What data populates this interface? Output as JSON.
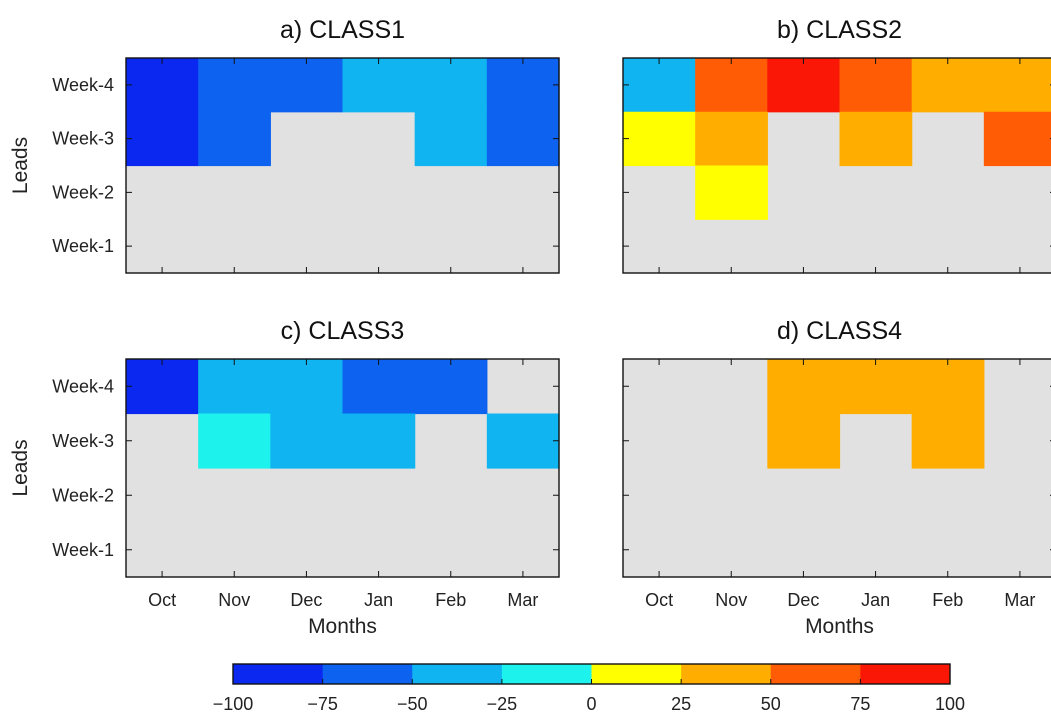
{
  "chart_data": [
    {
      "type": "heatmap",
      "title": "a) CLASS1",
      "x_categories": [
        "Oct",
        "Nov",
        "Dec",
        "Jan",
        "Feb",
        "Mar"
      ],
      "y_categories": [
        "Week-4",
        "Week-3",
        "Week-2",
        "Week-1"
      ],
      "xlabel": "",
      "ylabel": "Leads",
      "values": [
        [
          -87.5,
          -62.5,
          -62.5,
          -37.5,
          -37.5,
          -62.5
        ],
        [
          -87.5,
          -62.5,
          null,
          null,
          -37.5,
          -62.5
        ],
        [
          null,
          null,
          null,
          null,
          null,
          null
        ],
        [
          null,
          null,
          null,
          null,
          null,
          null
        ]
      ]
    },
    {
      "type": "heatmap",
      "title": "b) CLASS2",
      "x_categories": [
        "Oct",
        "Nov",
        "Dec",
        "Jan",
        "Feb",
        "Mar"
      ],
      "y_categories": [
        "Week-4",
        "Week-3",
        "Week-2",
        "Week-1"
      ],
      "xlabel": "",
      "ylabel": "",
      "values": [
        [
          -37.5,
          62.5,
          87.5,
          62.5,
          37.5,
          37.5
        ],
        [
          12.5,
          37.5,
          null,
          37.5,
          null,
          62.5
        ],
        [
          null,
          12.5,
          null,
          null,
          null,
          null
        ],
        [
          null,
          null,
          null,
          null,
          null,
          null
        ]
      ]
    },
    {
      "type": "heatmap",
      "title": "c) CLASS3",
      "x_categories": [
        "Oct",
        "Nov",
        "Dec",
        "Jan",
        "Feb",
        "Mar"
      ],
      "y_categories": [
        "Week-4",
        "Week-3",
        "Week-2",
        "Week-1"
      ],
      "xlabel": "Months",
      "ylabel": "Leads",
      "values": [
        [
          -87.5,
          -37.5,
          -37.5,
          -62.5,
          -62.5,
          null
        ],
        [
          null,
          -12.5,
          -37.5,
          -37.5,
          null,
          -37.5
        ],
        [
          null,
          null,
          null,
          null,
          null,
          null
        ],
        [
          null,
          null,
          null,
          null,
          null,
          null
        ]
      ]
    },
    {
      "type": "heatmap",
      "title": "d) CLASS4",
      "x_categories": [
        "Oct",
        "Nov",
        "Dec",
        "Jan",
        "Feb",
        "Mar"
      ],
      "y_categories": [
        "Week-4",
        "Week-3",
        "Week-2",
        "Week-1"
      ],
      "xlabel": "Months",
      "ylabel": "",
      "values": [
        [
          null,
          null,
          37.5,
          37.5,
          37.5,
          null
        ],
        [
          null,
          null,
          37.5,
          null,
          37.5,
          null
        ],
        [
          null,
          null,
          null,
          null,
          null,
          null
        ],
        [
          null,
          null,
          null,
          null,
          null,
          null
        ]
      ]
    }
  ],
  "colorbar": {
    "ticks": [
      "−100",
      "−75",
      "−50",
      "−25",
      "0",
      "25",
      "50",
      "75",
      "100"
    ],
    "range": [
      -100,
      100
    ],
    "colors": [
      "#0a28f0",
      "#0d62f0",
      "#0fb4f0",
      "#1ef2ec",
      "#ffff00",
      "#ffae00",
      "#ff5c05",
      "#fb1705"
    ]
  },
  "missing_color": "#e1e1e1"
}
